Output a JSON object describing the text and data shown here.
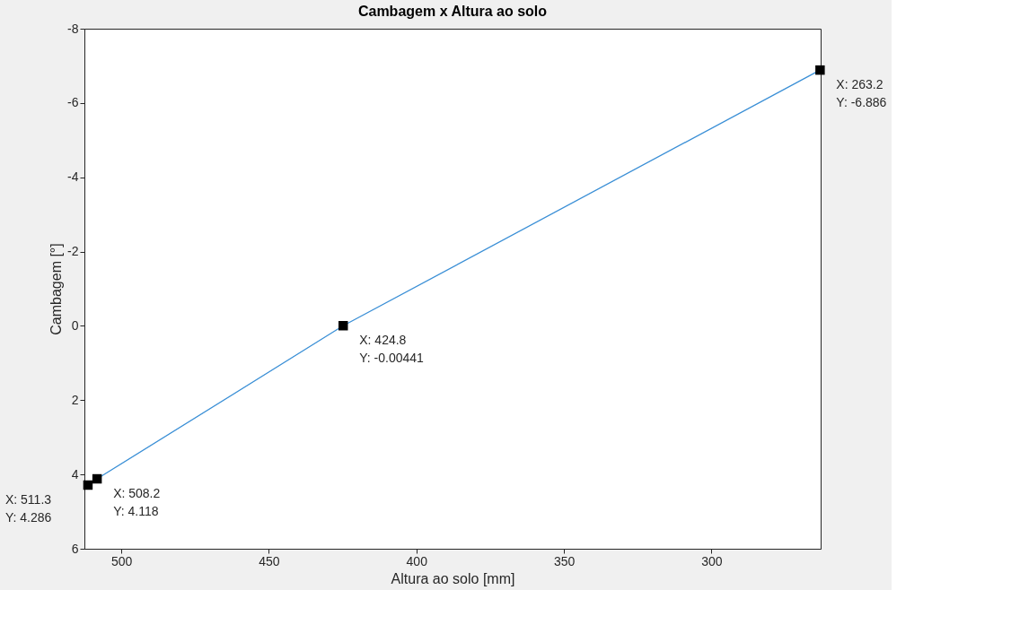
{
  "chart_data": {
    "type": "line",
    "title": "Cambagem x Altura ao solo",
    "xlabel": "Altura ao solo [mm]",
    "ylabel": "Cambagem [°]",
    "x": [
      511.3,
      508.2,
      424.8,
      263.2
    ],
    "series": [
      {
        "color": "#3a8fd6",
        "values": [
          4.286,
          4.118,
          -0.00441,
          -6.886
        ]
      }
    ],
    "xlim": [
      512.5,
      263
    ],
    "xticks": [
      500,
      450,
      400,
      350,
      300
    ],
    "ylim": [
      6,
      -8
    ],
    "yticks": [
      -8,
      -6,
      -4,
      -2,
      0,
      2,
      4,
      6
    ],
    "grid": false,
    "marker": "square",
    "line_style": "solid",
    "annotations": [
      {
        "text": "X: 511.3\nY: 4.286",
        "x": 511.3,
        "y": 4.286
      },
      {
        "text": "X: 508.2\nY: 4.118",
        "x": 508.2,
        "y": 4.118
      },
      {
        "text": "X: 424.8\nY: -0.00441",
        "x": 424.8,
        "y": -0.00441
      },
      {
        "text": "X: 263.2\nY: -6.886",
        "x": 263.2,
        "y": -6.886
      }
    ]
  }
}
